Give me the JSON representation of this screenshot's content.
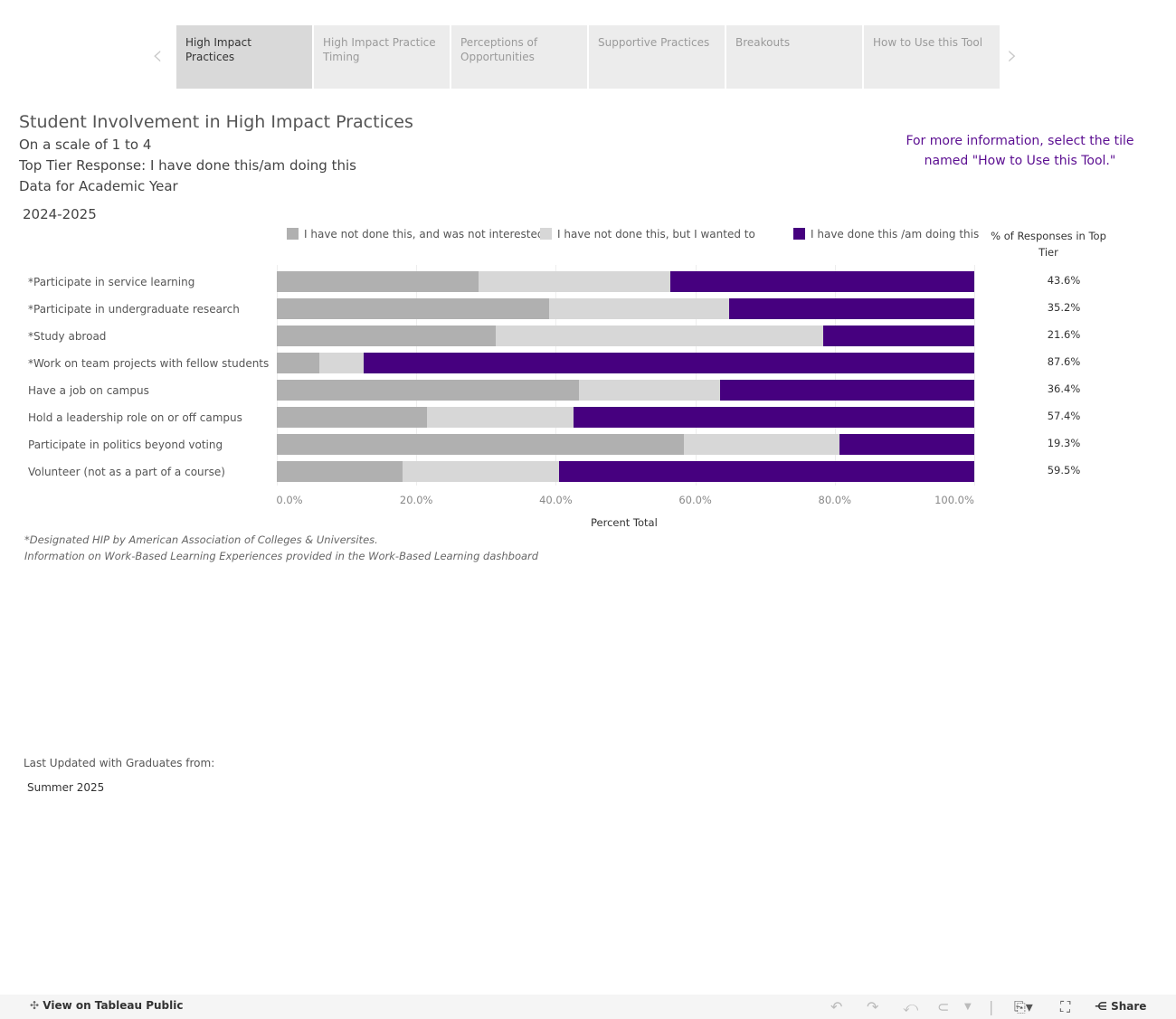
{
  "tabs": [
    {
      "label": "High Impact Practices",
      "active": true
    },
    {
      "label": "High Impact Practice Timing"
    },
    {
      "label": "Perceptions of Opportunities"
    },
    {
      "label": "Supportive Practices"
    },
    {
      "label": "Breakouts"
    },
    {
      "label": "How to Use this Tool"
    }
  ],
  "header": {
    "title": "Student Involvement in High Impact Practices",
    "scale": "On a scale of 1 to 4",
    "top_tier": "Top Tier Response: I have done this/am doing this",
    "data_for": "Data for Academic Year",
    "year": "2024-2025",
    "info": "For more information, select the tile named \"How to Use this Tool.\""
  },
  "colors": {
    "not_interested": "#b0b0b0",
    "wanted": "#d7d7d7",
    "done": "#46007f",
    "info": "#5b0e91"
  },
  "chart_data": {
    "type": "bar",
    "stacked": true,
    "orientation": "horizontal",
    "legend": [
      "I have not done this, and was not interested",
      "I have not done this, but I wanted to",
      "I have done this /am doing this"
    ],
    "pct_header": "% of Responses in Top Tier",
    "xlabel": "Percent Total",
    "xlim": [
      0,
      100
    ],
    "ticks": [
      "0.0%",
      "20.0%",
      "40.0%",
      "60.0%",
      "80.0%",
      "100.0%"
    ],
    "categories": [
      "*Participate in service learning",
      "*Participate in undergraduate research",
      "*Study abroad",
      "*Work on team projects with fellow students",
      "Have a job on campus",
      "Hold a leadership role on or off campus",
      "Participate in politics beyond voting",
      "Volunteer (not as a part of a course)"
    ],
    "series": [
      {
        "name": "I have not done this, and was not interested",
        "values": [
          28.9,
          39.0,
          31.4,
          6.1,
          43.3,
          21.5,
          58.4,
          18.0
        ]
      },
      {
        "name": "I have not done this, but I wanted to",
        "values": [
          27.5,
          25.8,
          47.0,
          6.3,
          20.3,
          21.1,
          22.3,
          22.5
        ]
      },
      {
        "name": "I have done this /am doing this",
        "values": [
          43.6,
          35.2,
          21.6,
          87.6,
          36.4,
          57.4,
          19.3,
          59.5
        ]
      }
    ],
    "pct_labels": [
      "43.6%",
      "35.2%",
      "21.6%",
      "87.6%",
      "36.4%",
      "57.4%",
      "19.3%",
      "59.5%"
    ]
  },
  "notes": [
    "*Designated HIP by American Association of Colleges & Universites.",
    "Information on Work-Based Learning Experiences provided in the Work-Based Learning dashboard"
  ],
  "updated": {
    "label": "Last Updated with Graduates from:",
    "value": "Summer 2025"
  },
  "footer": {
    "view": "View on Tableau Public",
    "share": "Share"
  }
}
